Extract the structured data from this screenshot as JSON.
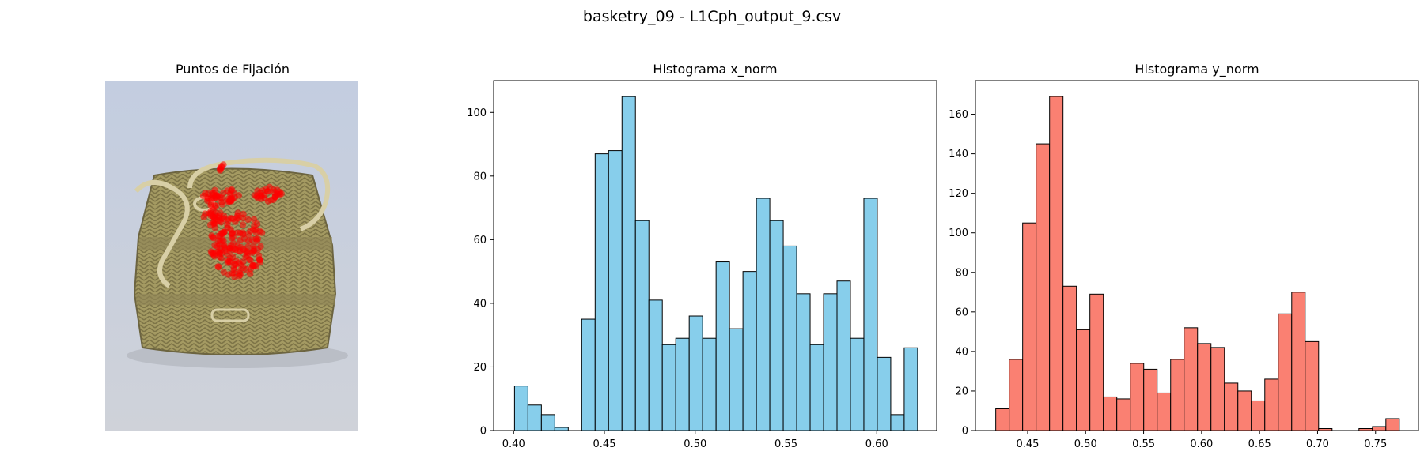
{
  "suptitle": "basketry_09 - L1Cph_output_9.csv",
  "photo": {
    "title": "Puntos de Fijación",
    "background_top": "#c3cde0",
    "background_bottom": "#cfd2d9",
    "basket_color": "#a49a62",
    "basket_shadow": "#7d7447",
    "rope_color": "#d8cfa6",
    "fixation_color": "#ff0000"
  },
  "chart_data": [
    {
      "type": "bar",
      "title": "Histograma x_norm",
      "xlabel": "",
      "ylabel": "",
      "color": "#87ceeb",
      "edge_color": "#000000",
      "bin_start": 0.4005,
      "bin_width": 0.0074,
      "values": [
        14,
        8,
        5,
        1,
        0,
        35,
        87,
        88,
        105,
        66,
        41,
        27,
        29,
        36,
        29,
        53,
        32,
        50,
        73,
        66,
        58,
        43,
        27,
        43,
        47,
        29,
        73,
        23,
        5,
        26
      ],
      "xlim": [
        0.389,
        0.633
      ],
      "ylim": [
        0,
        110
      ],
      "xticks": [
        0.4,
        0.45,
        0.5,
        0.55,
        0.6
      ],
      "xtick_labels": [
        "0.40",
        "0.45",
        "0.50",
        "0.55",
        "0.60"
      ],
      "yticks": [
        0,
        20,
        40,
        60,
        80,
        100
      ],
      "ytick_labels": [
        "0",
        "20",
        "40",
        "60",
        "80",
        "100"
      ],
      "grid": false
    },
    {
      "type": "bar",
      "title": "Histograma y_norm",
      "xlabel": "",
      "ylabel": "",
      "color": "#fa8072",
      "edge_color": "#000000",
      "bin_start": 0.4225,
      "bin_width": 0.0116,
      "values": [
        11,
        36,
        105,
        145,
        169,
        73,
        51,
        69,
        17,
        16,
        34,
        31,
        19,
        36,
        52,
        44,
        42,
        24,
        20,
        15,
        26,
        59,
        70,
        45,
        1,
        0,
        0,
        1,
        2,
        6
      ],
      "xlim": [
        0.405,
        0.787
      ],
      "ylim": [
        0,
        177
      ],
      "xticks": [
        0.45,
        0.5,
        0.55,
        0.6,
        0.65,
        0.7,
        0.75
      ],
      "xtick_labels": [
        "0.45",
        "0.50",
        "0.55",
        "0.60",
        "0.65",
        "0.70",
        "0.75"
      ],
      "yticks": [
        0,
        20,
        40,
        60,
        80,
        100,
        120,
        140,
        160
      ],
      "ytick_labels": [
        "0",
        "20",
        "40",
        "60",
        "80",
        "100",
        "120",
        "140",
        "160"
      ],
      "grid": false
    }
  ]
}
